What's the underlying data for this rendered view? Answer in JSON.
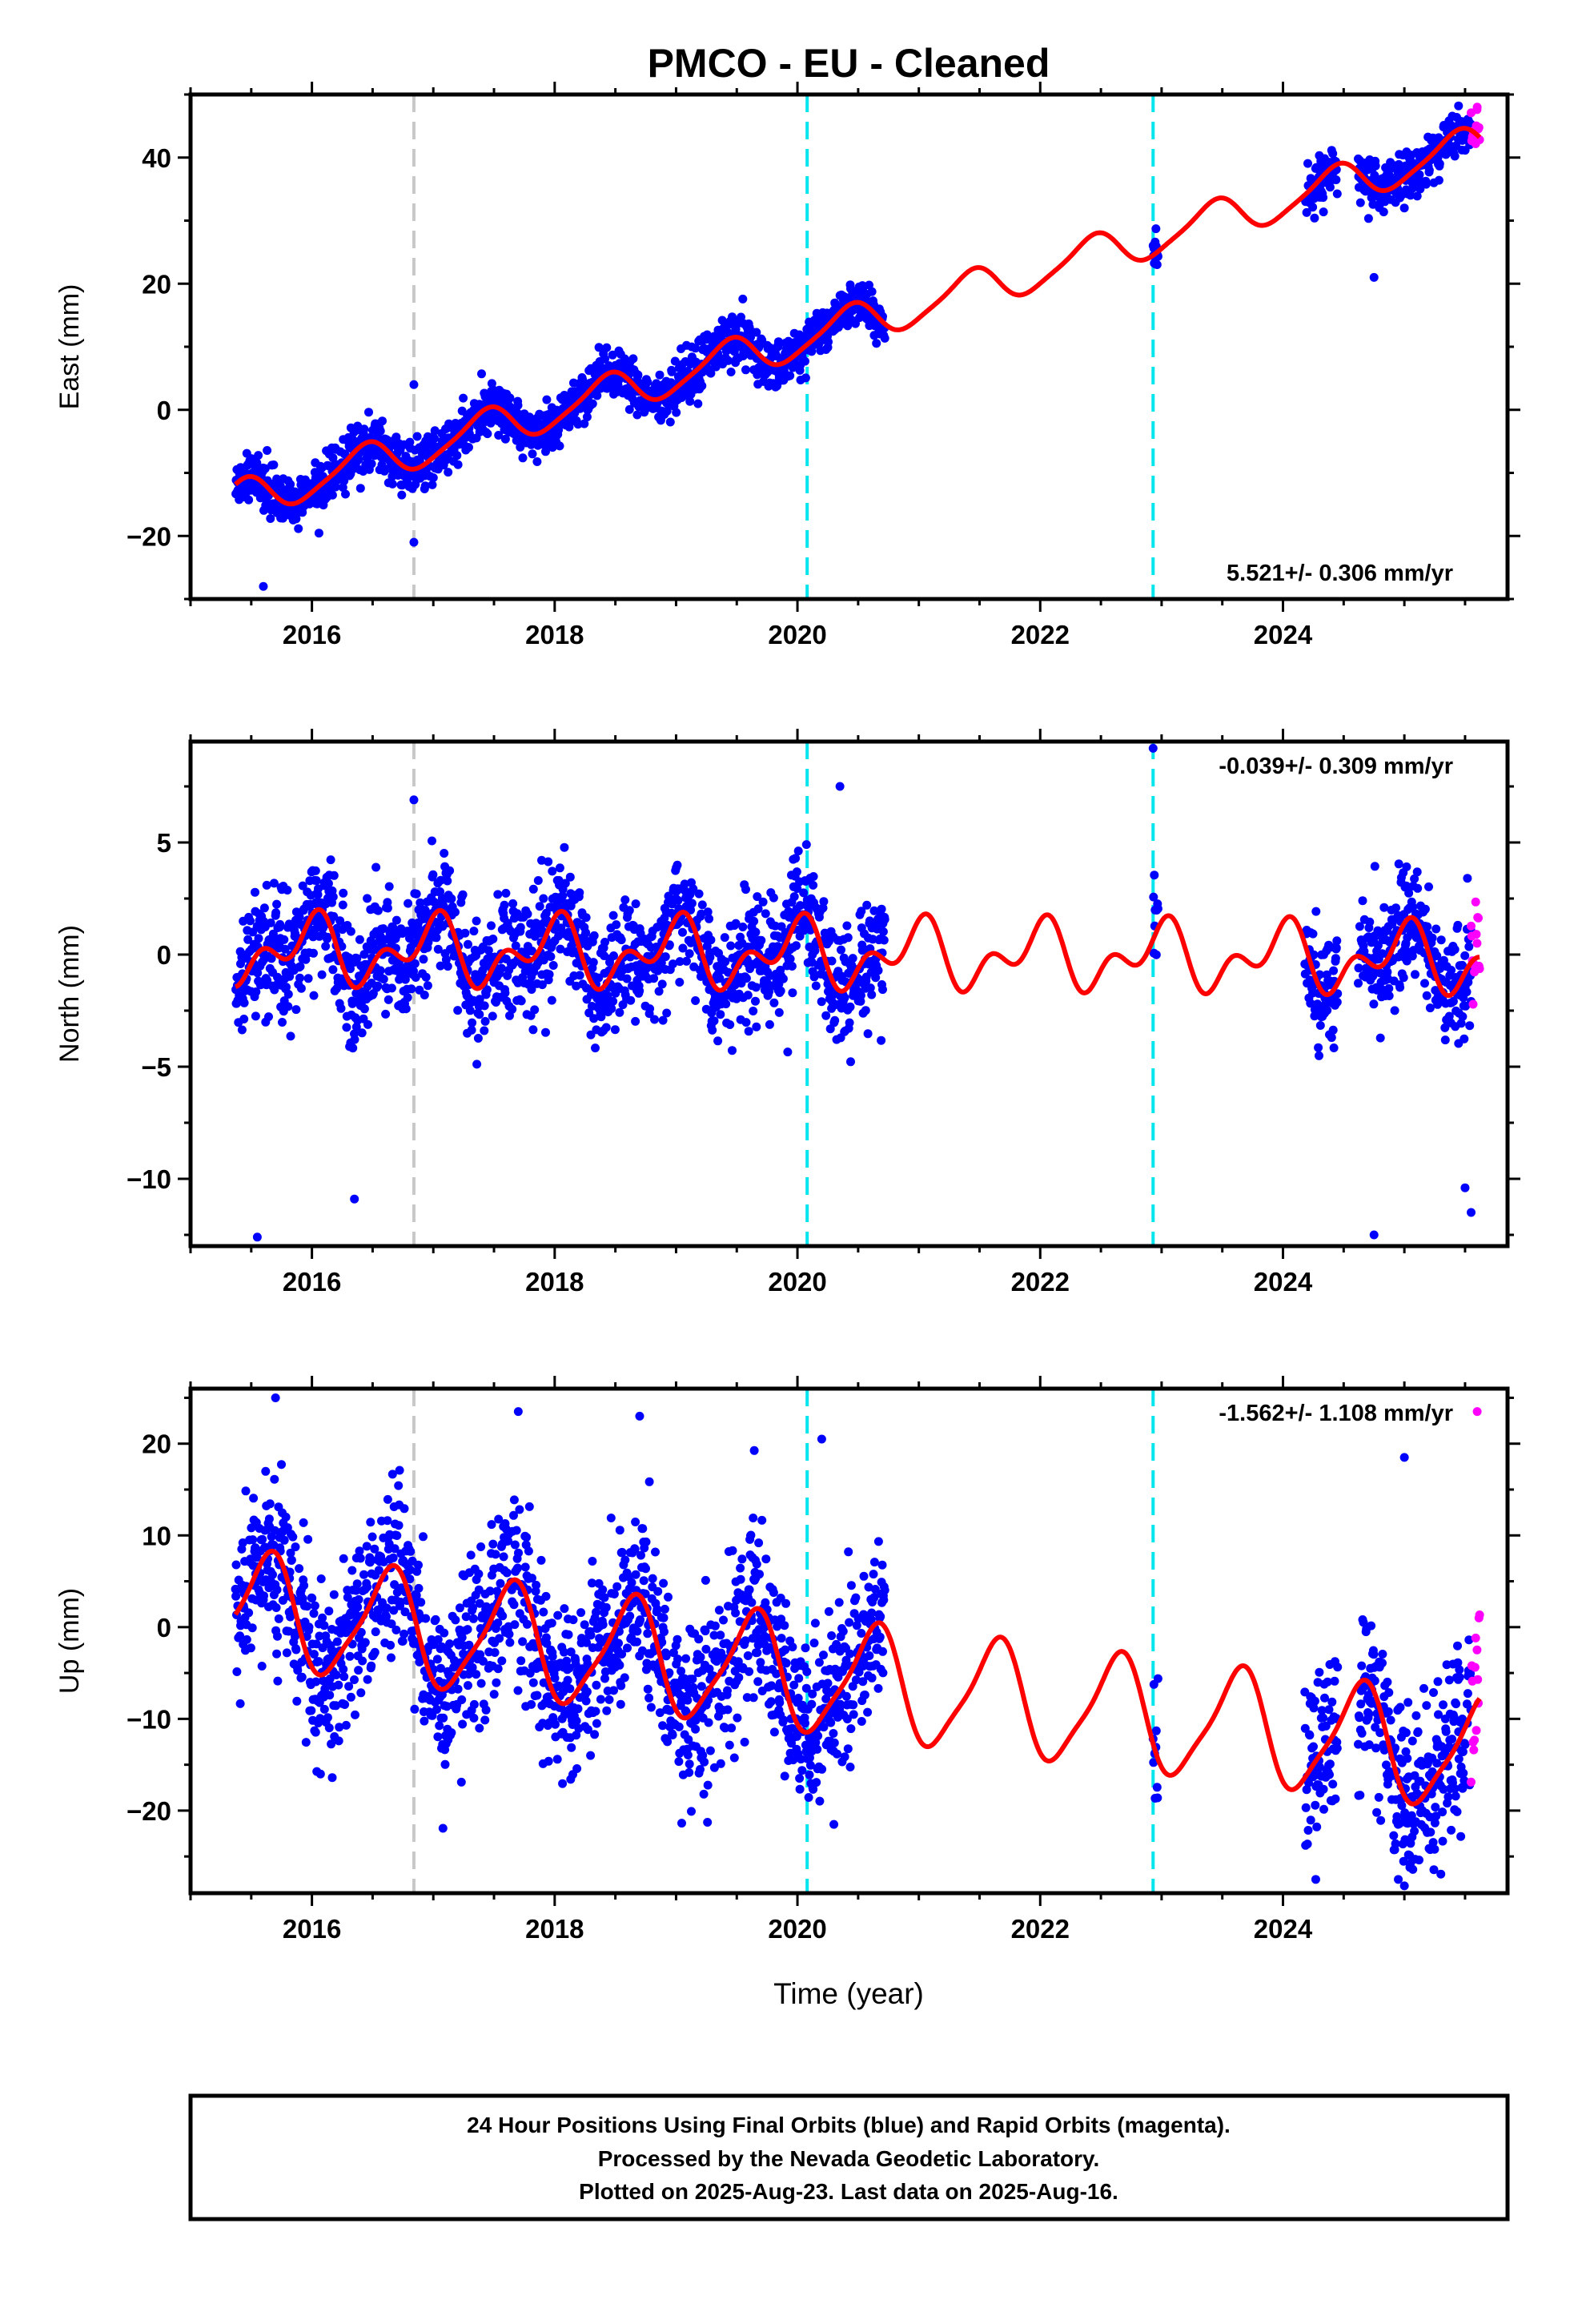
{
  "title": "PMCO  - EU - Cleaned",
  "xlabel": "Time (year)",
  "footer": {
    "lines": [
      "24 Hour Positions Using Final Orbits (blue) and Rapid Orbits (magenta).",
      "Processed by the Nevada Geodetic Laboratory.",
      "Plotted on 2025-Aug-23. Last data on 2025-Aug-16."
    ]
  },
  "colors": {
    "final_orbits": "#0000ff",
    "rapid_orbits": "#ff00ff",
    "model_fit": "#ff0000",
    "antenna_change": "#c8c8c8",
    "equipment_change": "#00e5ee",
    "frame": "#000000"
  },
  "chart_data": [
    {
      "type": "scatter",
      "component": "east",
      "ylabel": "East (mm)",
      "rate_label": "5.521+/- 0.306 mm/yr",
      "xlim": [
        2015.0,
        2025.85
      ],
      "ylim": [
        -30,
        50
      ],
      "xticks": [
        2016,
        2018,
        2020,
        2022,
        2024
      ],
      "yticks": [
        -20,
        0,
        20,
        40
      ],
      "grid": false,
      "rate_mm_per_yr": 5.521,
      "offset_mm": -14.5,
      "fit_start": 2015.37,
      "annual_amplitude_mm": 3.0,
      "semiannual_amplitude_mm": 0.6,
      "annual_peak_year_fraction": 0.42,
      "breaks": [
        {
          "year": 2016.84,
          "kind": "antenna"
        },
        {
          "year": 2020.08,
          "kind": "equipment"
        },
        {
          "year": 2022.93,
          "kind": "equipment"
        }
      ],
      "data_segments": [
        [
          2015.37,
          2020.72
        ],
        [
          2022.93,
          2022.97
        ],
        [
          2024.18,
          2024.45
        ],
        [
          2024.62,
          2025.55
        ]
      ],
      "rapid_segment": [
        2025.55,
        2025.62
      ],
      "scatter_sd_mm": 1.9,
      "outliers": [
        {
          "x": 2016.84,
          "y": 4
        },
        {
          "x": 2016.84,
          "y": -21
        },
        {
          "x": 2015.6,
          "y": -28
        },
        {
          "x": 2020.38,
          "y": 18
        },
        {
          "x": 2024.75,
          "y": 21
        },
        {
          "x": 2025.6,
          "y": 48
        }
      ]
    },
    {
      "type": "scatter",
      "component": "north",
      "ylabel": "North (mm)",
      "rate_label": "-0.039+/- 0.309 mm/yr",
      "xlim": [
        2015.0,
        2025.85
      ],
      "ylim": [
        -13,
        9.5
      ],
      "xticks": [
        2016,
        2018,
        2020,
        2022,
        2024
      ],
      "yticks": [
        -10,
        -5,
        0,
        5
      ],
      "grid": false,
      "rate_mm_per_yr": -0.039,
      "offset_mm": 0.2,
      "fit_start": 2015.37,
      "annual_amplitude_mm": 1.1,
      "semiannual_amplitude_mm": 0.9,
      "annual_peak_year_fraction": 0.98,
      "breaks": [
        {
          "year": 2016.84,
          "kind": "antenna"
        },
        {
          "year": 2020.08,
          "kind": "equipment"
        },
        {
          "year": 2022.93,
          "kind": "equipment"
        }
      ],
      "data_segments": [
        [
          2015.37,
          2020.72
        ],
        [
          2022.93,
          2022.97
        ],
        [
          2024.18,
          2024.45
        ],
        [
          2024.62,
          2025.55
        ]
      ],
      "rapid_segment": [
        2025.55,
        2025.62
      ],
      "scatter_sd_mm": 1.3,
      "outliers": [
        {
          "x": 2015.55,
          "y": -12.6
        },
        {
          "x": 2016.35,
          "y": -10.9
        },
        {
          "x": 2016.84,
          "y": 6.9
        },
        {
          "x": 2020.35,
          "y": 7.5
        },
        {
          "x": 2022.93,
          "y": 9.2
        },
        {
          "x": 2024.75,
          "y": -12.5
        },
        {
          "x": 2025.55,
          "y": -11.5
        },
        {
          "x": 2025.5,
          "y": -10.4
        }
      ]
    },
    {
      "type": "scatter",
      "component": "up",
      "ylabel": "Up (mm)",
      "rate_label": "-1.562+/- 1.108 mm/yr",
      "xlim": [
        2015.0,
        2025.85
      ],
      "ylim": [
        -29,
        26
      ],
      "xticks": [
        2016,
        2018,
        2020,
        2022,
        2024
      ],
      "yticks": [
        -20,
        -10,
        0,
        10,
        20
      ],
      "grid": false,
      "rate_mm_per_yr": -1.562,
      "offset_mm": 2.0,
      "fit_start": 2015.37,
      "annual_amplitude_mm": 6.0,
      "semiannual_amplitude_mm": 1.3,
      "annual_peak_year_fraction": 0.63,
      "breaks": [
        {
          "year": 2016.84,
          "kind": "antenna"
        },
        {
          "year": 2020.08,
          "kind": "equipment"
        },
        {
          "year": 2022.93,
          "kind": "equipment"
        }
      ],
      "data_segments": [
        [
          2015.37,
          2020.72
        ],
        [
          2022.93,
          2022.97
        ],
        [
          2024.18,
          2024.45
        ],
        [
          2024.62,
          2025.55
        ]
      ],
      "rapid_segment": [
        2025.55,
        2025.62
      ],
      "scatter_sd_mm": 4.8,
      "outliers": [
        {
          "x": 2015.7,
          "y": 25
        },
        {
          "x": 2017.7,
          "y": 23.5
        },
        {
          "x": 2018.7,
          "y": 23
        },
        {
          "x": 2020.2,
          "y": 20.5
        },
        {
          "x": 2020.3,
          "y": -21.5
        },
        {
          "x": 2024.27,
          "y": -27.5
        },
        {
          "x": 2024.95,
          "y": -27.5
        },
        {
          "x": 2025.0,
          "y": -28.2
        },
        {
          "x": 2025.0,
          "y": 18.5
        },
        {
          "x": 2025.6,
          "y": 23.5
        }
      ]
    }
  ]
}
